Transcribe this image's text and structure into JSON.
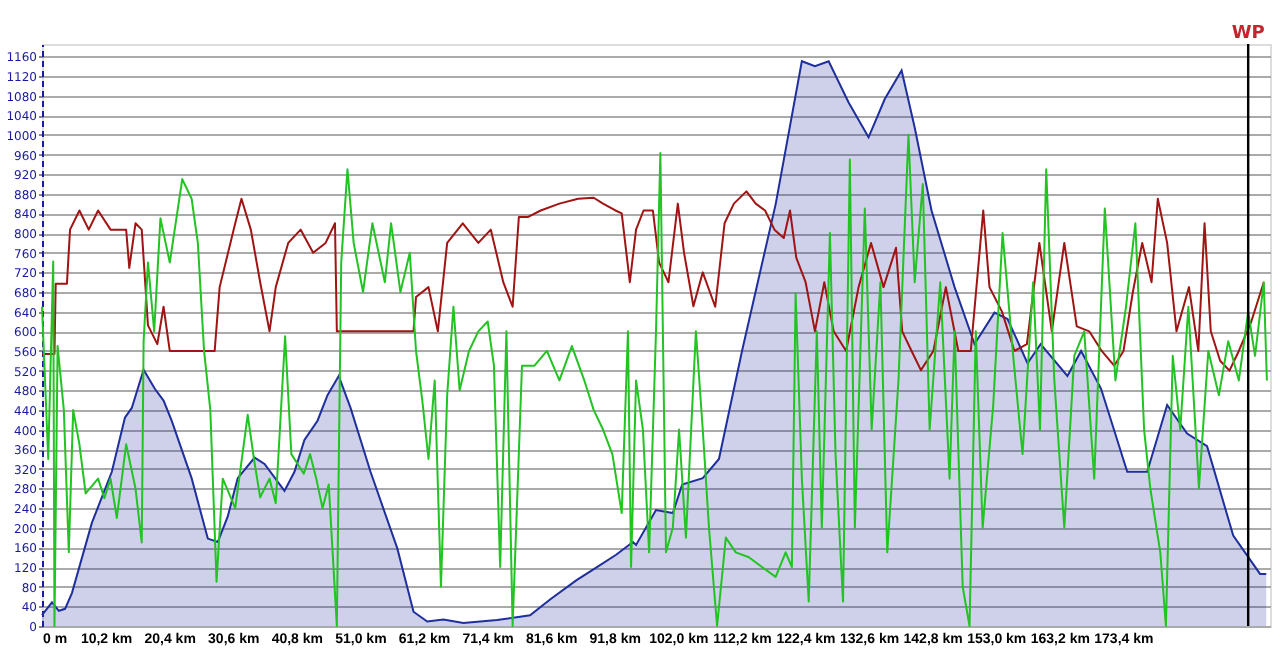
{
  "chart_data": {
    "type": "area",
    "xlim": [
      0,
      197
    ],
    "ylim": [
      0,
      1185
    ],
    "xticks": [
      {
        "value": 0,
        "label": "0 m"
      },
      {
        "value": 10.2,
        "label": "10,2 km"
      },
      {
        "value": 20.4,
        "label": "20,4 km"
      },
      {
        "value": 30.6,
        "label": "30,6 km"
      },
      {
        "value": 40.8,
        "label": "40,8 km"
      },
      {
        "value": 51.0,
        "label": "51,0 km"
      },
      {
        "value": 61.2,
        "label": "61,2 km"
      },
      {
        "value": 71.4,
        "label": "71,4 km"
      },
      {
        "value": 81.6,
        "label": "81,6 km"
      },
      {
        "value": 91.8,
        "label": "91,8 km"
      },
      {
        "value": 102.0,
        "label": "102,0 km"
      },
      {
        "value": 112.2,
        "label": "112,2 km"
      },
      {
        "value": 122.4,
        "label": "122,4 km"
      },
      {
        "value": 132.6,
        "label": "132,6 km"
      },
      {
        "value": 142.8,
        "label": "142,8 km"
      },
      {
        "value": 153.0,
        "label": "153,0 km"
      },
      {
        "value": 163.2,
        "label": "163,2 km"
      },
      {
        "value": 173.4,
        "label": "173,4 km"
      }
    ],
    "yticks": [
      0,
      40,
      80,
      120,
      160,
      200,
      240,
      280,
      320,
      360,
      400,
      440,
      480,
      520,
      560,
      600,
      640,
      680,
      720,
      760,
      800,
      840,
      880,
      920,
      960,
      1000,
      1040,
      1080,
      1120,
      1160
    ],
    "grid": "y",
    "marker": "none",
    "line_style": "solid",
    "ref_lines": [
      {
        "axis": "x",
        "value": 193.5,
        "label": "WP",
        "color": "#000000"
      }
    ],
    "series": [
      {
        "color": "#1f2f9c",
        "x": [
          0,
          1.6,
          2.7,
          3.7,
          4.8,
          8.0,
          11.2,
          13.3,
          14.4,
          16.3,
          18.1,
          19.5,
          20.8,
          24.0,
          26.6,
          28.2,
          29.8,
          31.4,
          34.1,
          35.7,
          38.9,
          40.5,
          42.1,
          44.2,
          45.8,
          47.6,
          49.5,
          52.7,
          57.0,
          59.6,
          61.8,
          64.4,
          67.6,
          73.0,
          78.3,
          81.5,
          85.7,
          88.9,
          92.1,
          94.8,
          95.3,
          98.5,
          101.2,
          102.7,
          106.0,
          108.6,
          112.3,
          117.7,
          121.9,
          124.0,
          126.2,
          129.4,
          132.6,
          135.2,
          137.9,
          140.0,
          142.7,
          146.4,
          149.6,
          152.8,
          154.9,
          158.1,
          160.2,
          164.5,
          166.7,
          169.9,
          174.1,
          177.3,
          180.5,
          183.7,
          186.9,
          191.1,
          195.4,
          196.4
        ],
        "values": [
          22,
          48,
          31,
          35,
          67,
          210,
          314,
          424,
          444,
          522,
          483,
          459,
          418,
          301,
          178,
          171,
          223,
          301,
          343,
          330,
          275,
          314,
          379,
          418,
          470,
          509,
          444,
          314,
          158,
          29,
          9,
          13,
          6,
          12,
          22,
          54,
          93,
          119,
          145,
          171,
          165,
          236,
          230,
          288,
          301,
          340,
          560,
          859,
          1150,
          1140,
          1150,
          1066,
          995,
          1073,
          1131,
          1015,
          846,
          690,
          574,
          638,
          625,
          535,
          574,
          509,
          560,
          483,
          314,
          314,
          450,
          392,
          366,
          184,
          106,
          106
        ]
      },
      {
        "type": "line",
        "color": "#a01414",
        "x": [
          0,
          2.0,
          2.2,
          4.0,
          4.5,
          6.0,
          7.5,
          9.0,
          11.0,
          13.5,
          14.0,
          15.0,
          16.0,
          17.0,
          18.5,
          19.5,
          20.5,
          21.8,
          27.7,
          28.5,
          31.0,
          32.0,
          33.5,
          35.0,
          36.5,
          37.5,
          39.5,
          41.5,
          43.5,
          45.5,
          47.0,
          47.3,
          59.6,
          60.0,
          62.0,
          63.5,
          65.0,
          67.5,
          70.0,
          72.0,
          74.0,
          75.5,
          76.5,
          78.0,
          80.0,
          83.0,
          86.0,
          88.5,
          90.0,
          92.0,
          93.0,
          94.3,
          95.3,
          96.5,
          98.0,
          99.0,
          100.5,
          102.0,
          103.0,
          104.5,
          106.0,
          108.0,
          109.5,
          111.0,
          113.0,
          114.5,
          116.0,
          117.5,
          119.0,
          120.0,
          121.0,
          122.5,
          124.0,
          125.5,
          127.0,
          129.0,
          131.0,
          133.0,
          135.0,
          137.0,
          138.0,
          139.5,
          141.0,
          143.0,
          145.0,
          147.0,
          149.0,
          151.0,
          152.0,
          154.0,
          156.0,
          158.0,
          160.0,
          162.0,
          164.0,
          166.0,
          168.0,
          170.0,
          172.0,
          173.5,
          175.0,
          176.5,
          178.0,
          179.0,
          180.5,
          182.0,
          184.0,
          185.5,
          186.5,
          187.5,
          189.0,
          190.5,
          192.0,
          194.0,
          196.0
        ],
        "values": [
          554,
          554,
          697,
          697,
          807,
          846,
          807,
          846,
          807,
          807,
          729,
          820,
          807,
          612,
          574,
          650,
          560,
          560,
          560,
          690,
          820,
          870,
          807,
          700,
          600,
          690,
          780,
          807,
          760,
          780,
          820,
          600,
          600,
          670,
          690,
          600,
          780,
          820,
          780,
          807,
          700,
          650,
          833,
          833,
          846,
          860,
          870,
          872,
          860,
          846,
          840,
          700,
          807,
          846,
          846,
          740,
          700,
          860,
          760,
          651,
          720,
          650,
          820,
          860,
          885,
          860,
          846,
          807,
          790,
          846,
          750,
          700,
          600,
          700,
          600,
          560,
          690,
          780,
          690,
          770,
          600,
          560,
          521,
          560,
          690,
          560,
          560,
          846,
          690,
          640,
          560,
          574,
          780,
          600,
          780,
          610,
          600,
          560,
          530,
          560,
          680,
          780,
          700,
          870,
          780,
          600,
          690,
          560,
          820,
          600,
          540,
          520,
          560,
          620,
          700
        ]
      },
      {
        "type": "line",
        "color": "#22c322",
        "x": [
          0,
          1.0,
          1.8,
          2.0,
          2.5,
          3.5,
          4.3,
          5.0,
          6.0,
          7.0,
          9.0,
          10.0,
          11.0,
          12.0,
          13.5,
          15.0,
          16.0,
          16.3,
          17.0,
          18.0,
          19.0,
          20.5,
          22.5,
          24.0,
          25.0,
          26.0,
          27.0,
          28.0,
          29.0,
          31.0,
          33.0,
          34.0,
          35.0,
          36.5,
          37.5,
          39.0,
          40.0,
          42.0,
          43.0,
          44.0,
          45.0,
          46.0,
          47.3,
          48.0,
          49.0,
          50.0,
          51.5,
          53.0,
          55.0,
          56.0,
          57.5,
          59.0,
          60.0,
          61.0,
          62.0,
          63.0,
          64.0,
          65.0,
          66.0,
          67.0,
          68.5,
          70.0,
          71.5,
          72.5,
          73.5,
          74.5,
          75.5,
          77.0,
          79.0,
          81.0,
          83.0,
          85.0,
          87.0,
          88.5,
          90.0,
          91.5,
          93.0,
          94.0,
          94.5,
          95.3,
          96.4,
          97.4,
          98.5,
          99.2,
          100.1,
          101.2,
          102.2,
          103.3,
          104.9,
          106.0,
          107.0,
          108.3,
          109.7,
          111.3,
          113.4,
          115.5,
          117.7,
          119.3,
          120.3,
          120.9,
          121.9,
          123.0,
          124.3,
          125.1,
          126.4,
          127.3,
          128.5,
          129.6,
          130.4,
          132.0,
          133.1,
          134.5,
          135.6,
          137.4,
          139.0,
          140.0,
          141.3,
          142.4,
          144.1,
          145.6,
          146.4,
          147.7,
          148.8,
          149.8,
          150.9,
          152.6,
          154.1,
          155.8,
          157.3,
          159.0,
          160.1,
          161.1,
          162.4,
          164.0,
          165.6,
          167.2,
          168.8,
          170.5,
          172.2,
          173.9,
          175.4,
          176.8,
          177.8,
          179.4,
          180.3,
          181.4,
          182.6,
          183.9,
          185.6,
          187.1,
          188.8,
          190.3,
          192.0,
          193.5,
          194.6,
          196.0,
          196.5
        ],
        "values": [
          650,
          340,
          742,
          0,
          570,
          440,
          150,
          440,
          370,
          270,
          300,
          260,
          300,
          220,
          370,
          280,
          170,
          580,
          740,
          600,
          830,
          740,
          910,
          870,
          780,
          560,
          440,
          90,
          300,
          240,
          430,
          340,
          262,
          300,
          250,
          590,
          350,
          310,
          350,
          300,
          240,
          288,
          0,
          740,
          930,
          780,
          680,
          820,
          700,
          820,
          680,
          760,
          560,
          460,
          340,
          500,
          80,
          470,
          650,
          480,
          560,
          600,
          620,
          530,
          120,
          600,
          0,
          530,
          530,
          560,
          500,
          570,
          500,
          440,
          400,
          350,
          230,
          600,
          120,
          500,
          400,
          150,
          600,
          963,
          150,
          200,
          400,
          180,
          600,
          400,
          200,
          0,
          180,
          150,
          140,
          120,
          100,
          150,
          120,
          677,
          300,
          50,
          600,
          200,
          800,
          350,
          50,
          950,
          200,
          850,
          400,
          700,
          150,
          500,
          1000,
          700,
          900,
          400,
          700,
          300,
          600,
          80,
          0,
          600,
          200,
          450,
          800,
          550,
          350,
          700,
          400,
          930,
          500,
          200,
          550,
          600,
          300,
          850,
          500,
          650,
          820,
          400,
          280,
          150,
          0,
          550,
          400,
          650,
          280,
          560,
          470,
          580,
          500,
          640,
          550,
          700,
          500
        ]
      }
    ]
  }
}
